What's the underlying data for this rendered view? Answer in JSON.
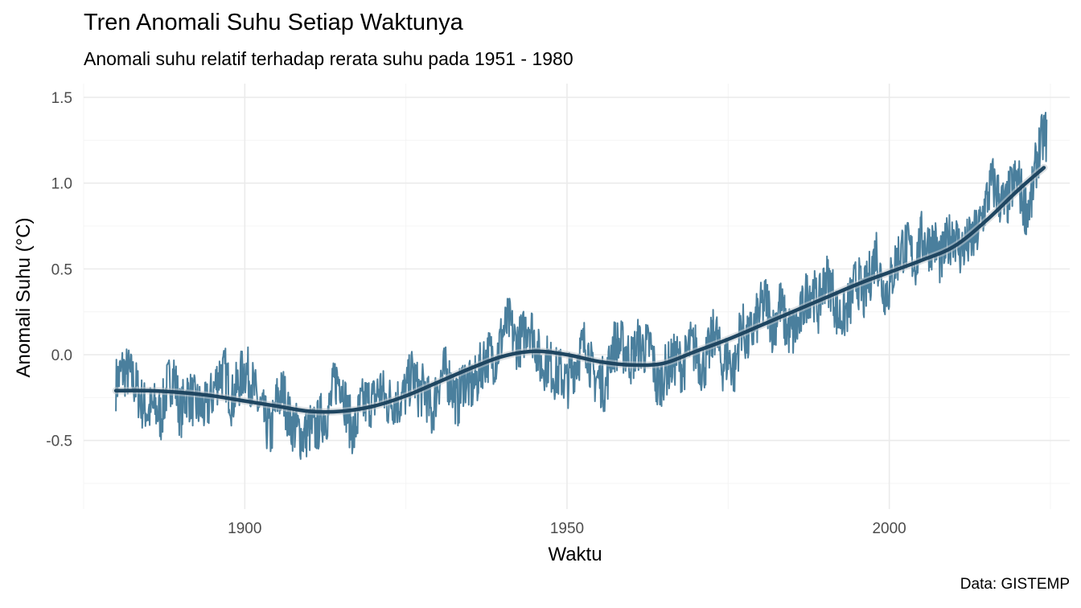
{
  "chart_data": {
    "type": "line",
    "title": "Tren Anomali Suhu Setiap Waktunya",
    "subtitle": "Anomali suhu relatif terhadap rerata suhu pada 1951 - 1980",
    "xlabel": "Waktu",
    "ylabel": "Anomali Suhu (°C)",
    "caption": "Data: GISTEMP",
    "xlim": [
      1875,
      2028
    ],
    "ylim": [
      -0.9,
      1.58
    ],
    "x_ticks": [
      1900,
      1950,
      2000
    ],
    "x_tick_labels": [
      "1900",
      "1950",
      "2000"
    ],
    "y_ticks": [
      -0.5,
      0.0,
      0.5,
      1.0,
      1.5
    ],
    "y_tick_labels": [
      "-0.5",
      "0.0",
      "0.5",
      "1.0",
      "1.5"
    ],
    "grid": true,
    "legend": "none",
    "series": [
      {
        "kind": "raw-monthly",
        "color": "#4a7f9d",
        "x": [
          1880,
          1881,
          1882,
          1883,
          1884,
          1885,
          1886,
          1887,
          1888,
          1889,
          1890,
          1891,
          1892,
          1893,
          1894,
          1895,
          1896,
          1897,
          1898,
          1899,
          1900,
          1901,
          1902,
          1903,
          1904,
          1905,
          1906,
          1907,
          1908,
          1909,
          1910,
          1911,
          1912,
          1913,
          1914,
          1915,
          1916,
          1917,
          1918,
          1919,
          1920,
          1921,
          1922,
          1923,
          1924,
          1925,
          1926,
          1927,
          1928,
          1929,
          1930,
          1931,
          1932,
          1933,
          1934,
          1935,
          1936,
          1937,
          1938,
          1939,
          1940,
          1941,
          1942,
          1943,
          1944,
          1945,
          1946,
          1947,
          1948,
          1949,
          1950,
          1951,
          1952,
          1953,
          1954,
          1955,
          1956,
          1957,
          1958,
          1959,
          1960,
          1961,
          1962,
          1963,
          1964,
          1965,
          1966,
          1967,
          1968,
          1969,
          1970,
          1971,
          1972,
          1973,
          1974,
          1975,
          1976,
          1977,
          1978,
          1979,
          1980,
          1981,
          1982,
          1983,
          1984,
          1985,
          1986,
          1987,
          1988,
          1989,
          1990,
          1991,
          1992,
          1993,
          1994,
          1995,
          1996,
          1997,
          1998,
          1999,
          2000,
          2001,
          2002,
          2003,
          2004,
          2005,
          2006,
          2007,
          2008,
          2009,
          2010,
          2011,
          2012,
          2013,
          2014,
          2015,
          2016,
          2017,
          2018,
          2019,
          2020,
          2021,
          2022,
          2023,
          2024
        ],
        "y": [
          -0.17,
          -0.09,
          -0.11,
          -0.17,
          -0.28,
          -0.33,
          -0.31,
          -0.36,
          -0.18,
          -0.11,
          -0.35,
          -0.22,
          -0.27,
          -0.31,
          -0.32,
          -0.23,
          -0.11,
          -0.11,
          -0.27,
          -0.17,
          -0.08,
          -0.15,
          -0.28,
          -0.37,
          -0.47,
          -0.26,
          -0.22,
          -0.39,
          -0.43,
          -0.48,
          -0.43,
          -0.44,
          -0.36,
          -0.34,
          -0.15,
          -0.14,
          -0.36,
          -0.46,
          -0.3,
          -0.27,
          -0.27,
          -0.19,
          -0.28,
          -0.26,
          -0.27,
          -0.22,
          -0.1,
          -0.22,
          -0.2,
          -0.36,
          -0.16,
          -0.1,
          -0.16,
          -0.29,
          -0.13,
          -0.2,
          -0.15,
          -0.03,
          -0.0,
          -0.02,
          0.13,
          0.19,
          0.07,
          0.09,
          0.2,
          0.09,
          -0.07,
          -0.03,
          -0.11,
          -0.11,
          -0.17,
          -0.07,
          0.01,
          0.08,
          -0.13,
          -0.14,
          -0.19,
          0.05,
          0.06,
          0.03,
          -0.03,
          0.06,
          0.03,
          0.05,
          -0.2,
          -0.11,
          -0.06,
          -0.02,
          -0.08,
          0.05,
          0.03,
          -0.08,
          0.01,
          0.16,
          -0.07,
          -0.01,
          -0.1,
          0.18,
          0.07,
          0.16,
          0.26,
          0.32,
          0.14,
          0.31,
          0.16,
          0.12,
          0.18,
          0.33,
          0.39,
          0.27,
          0.45,
          0.41,
          0.22,
          0.23,
          0.31,
          0.45,
          0.33,
          0.46,
          0.61,
          0.38,
          0.39,
          0.54,
          0.63,
          0.62,
          0.53,
          0.68,
          0.64,
          0.66,
          0.54,
          0.65,
          0.72,
          0.61,
          0.64,
          0.67,
          0.74,
          0.89,
          1.01,
          0.92,
          0.85,
          0.98,
          1.02,
          0.85,
          0.89,
          1.17,
          1.28
        ]
      },
      {
        "kind": "smoothed-trend",
        "color": "#1f4661",
        "x": [
          1880,
          1885,
          1890,
          1895,
          1900,
          1905,
          1910,
          1915,
          1920,
          1925,
          1930,
          1935,
          1940,
          1945,
          1950,
          1955,
          1960,
          1965,
          1970,
          1975,
          1980,
          1985,
          1990,
          1995,
          2000,
          2005,
          2010,
          2015,
          2020,
          2024
        ],
        "y": [
          -0.21,
          -0.21,
          -0.22,
          -0.24,
          -0.27,
          -0.3,
          -0.33,
          -0.33,
          -0.3,
          -0.24,
          -0.16,
          -0.08,
          -0.01,
          0.02,
          0.0,
          -0.04,
          -0.06,
          -0.05,
          0.02,
          0.09,
          0.17,
          0.25,
          0.33,
          0.41,
          0.48,
          0.55,
          0.63,
          0.78,
          0.96,
          1.09
        ]
      }
    ]
  }
}
